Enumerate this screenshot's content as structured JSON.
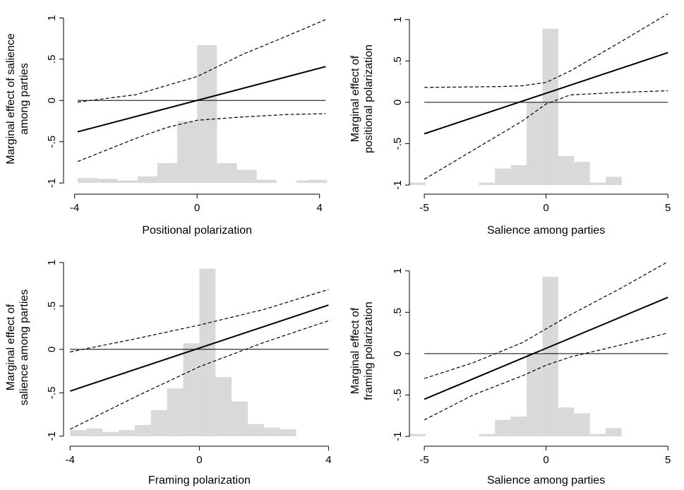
{
  "chart_data": [
    {
      "type": "line",
      "xlabel": "Positional polarization",
      "ylabel_lines": [
        "Marginal effect of salience",
        "among parties"
      ],
      "xlim": [
        -4.2,
        4.4
      ],
      "ylim": [
        -1.05,
        1.08
      ],
      "xticks": [
        -4,
        0,
        4
      ],
      "xtick_labels": [
        "-4",
        "0",
        "4"
      ],
      "yticks": [
        -1,
        -0.5,
        0,
        0.5,
        1
      ],
      "ytick_labels": [
        "-1",
        "-.5",
        "0",
        ".5",
        "1"
      ],
      "zero_line": 0,
      "series": [
        {
          "role": "estimate",
          "style": "solid",
          "x": [
            -3.9,
            4.2
          ],
          "y": [
            -0.38,
            0.41
          ]
        },
        {
          "role": "upper-ci",
          "style": "dashed",
          "x": [
            -3.9,
            -2,
            0,
            1.5,
            3,
            4.2
          ],
          "y": [
            -0.02,
            0.07,
            0.29,
            0.56,
            0.79,
            0.98
          ]
        },
        {
          "role": "lower-ci",
          "style": "dashed",
          "x": [
            -3.9,
            -2,
            -1,
            0,
            1.5,
            3,
            4.2
          ],
          "y": [
            -0.74,
            -0.46,
            -0.33,
            -0.24,
            -0.2,
            -0.17,
            -0.16
          ]
        }
      ],
      "histogram": [
        {
          "x0": -3.9,
          "x1": -3.25,
          "y": -0.94
        },
        {
          "x0": -3.25,
          "x1": -2.6,
          "y": -0.95
        },
        {
          "x0": -2.6,
          "x1": -1.95,
          "y": -0.97
        },
        {
          "x0": -1.95,
          "x1": -1.3,
          "y": -0.92
        },
        {
          "x0": -1.3,
          "x1": -0.65,
          "y": -0.76
        },
        {
          "x0": -0.65,
          "x1": 0.0,
          "y": -0.25
        },
        {
          "x0": 0.0,
          "x1": 0.65,
          "y": 0.67
        },
        {
          "x0": 0.65,
          "x1": 1.3,
          "y": -0.76
        },
        {
          "x0": 1.3,
          "x1": 1.95,
          "y": -0.84
        },
        {
          "x0": 1.95,
          "x1": 2.6,
          "y": -0.96
        },
        {
          "x0": 3.25,
          "x1": 3.6,
          "y": -0.97
        },
        {
          "x0": 3.6,
          "x1": 4.25,
          "y": -0.96
        }
      ]
    },
    {
      "type": "line",
      "xlabel": "Salience among parties",
      "ylabel_lines": [
        "Marginal effect of",
        "positional polarization"
      ],
      "xlim": [
        -5.9,
        5.4
      ],
      "ylim": [
        -1.05,
        1.1
      ],
      "xticks": [
        -5,
        0,
        5
      ],
      "xtick_labels": [
        "-5",
        "0",
        "5"
      ],
      "yticks": [
        -1,
        -0.5,
        0,
        0.5,
        1
      ],
      "ytick_labels": [
        "-1",
        "-.5",
        "0",
        ".5",
        "1"
      ],
      "zero_line": 0,
      "series": [
        {
          "role": "estimate",
          "style": "solid",
          "x": [
            -5,
            5
          ],
          "y": [
            -0.38,
            0.6
          ]
        },
        {
          "role": "upper-ci",
          "style": "dashed",
          "x": [
            -5,
            -2,
            -1,
            0,
            1,
            3,
            5
          ],
          "y": [
            0.18,
            0.19,
            0.2,
            0.24,
            0.38,
            0.72,
            1.07
          ]
        },
        {
          "role": "lower-ci",
          "style": "dashed",
          "x": [
            -5,
            -3,
            -1,
            0,
            1,
            3,
            5
          ],
          "y": [
            -0.93,
            -0.58,
            -0.23,
            -0.02,
            0.09,
            0.12,
            0.14
          ]
        }
      ],
      "histogram": [
        {
          "x0": -5.6,
          "x1": -4.95,
          "y": -0.97
        },
        {
          "x0": -2.75,
          "x1": -2.1,
          "y": -0.97
        },
        {
          "x0": -2.1,
          "x1": -1.45,
          "y": -0.8
        },
        {
          "x0": -1.45,
          "x1": -0.8,
          "y": -0.76
        },
        {
          "x0": -0.8,
          "x1": -0.15,
          "y": 0.0
        },
        {
          "x0": -0.15,
          "x1": 0.5,
          "y": 0.89
        },
        {
          "x0": 0.5,
          "x1": 1.15,
          "y": -0.65
        },
        {
          "x0": 1.15,
          "x1": 1.8,
          "y": -0.72
        },
        {
          "x0": 1.8,
          "x1": 2.45,
          "y": -0.97
        },
        {
          "x0": 2.45,
          "x1": 3.1,
          "y": -0.9
        }
      ]
    },
    {
      "type": "line",
      "xlabel": "Framing polarization",
      "ylabel_lines": [
        "Marginal effect of",
        "salience among parties"
      ],
      "xlim": [
        -4.05,
        4.1
      ],
      "ylim": [
        -1.05,
        1.08
      ],
      "xticks": [
        -4,
        0,
        4
      ],
      "xtick_labels": [
        "-4",
        "0",
        "4"
      ],
      "yticks": [
        -1,
        -0.5,
        0,
        0.5,
        1
      ],
      "ytick_labels": [
        "-1",
        "-.5",
        "0",
        ".5",
        "1"
      ],
      "zero_line": 0,
      "series": [
        {
          "role": "estimate",
          "style": "solid",
          "x": [
            -4,
            4
          ],
          "y": [
            -0.48,
            0.51
          ]
        },
        {
          "role": "upper-ci",
          "style": "dashed",
          "x": [
            -4,
            -2,
            0,
            2,
            4
          ],
          "y": [
            -0.03,
            0.12,
            0.28,
            0.46,
            0.69
          ]
        },
        {
          "role": "lower-ci",
          "style": "dashed",
          "x": [
            -4,
            -2,
            0,
            2,
            4
          ],
          "y": [
            -0.92,
            -0.55,
            -0.2,
            0.08,
            0.33
          ]
        }
      ],
      "histogram": [
        {
          "x0": -4.0,
          "x1": -3.5,
          "y": -0.93
        },
        {
          "x0": -3.5,
          "x1": -3.0,
          "y": -0.91
        },
        {
          "x0": -3.0,
          "x1": -2.5,
          "y": -0.95
        },
        {
          "x0": -2.5,
          "x1": -2.0,
          "y": -0.93
        },
        {
          "x0": -2.0,
          "x1": -1.5,
          "y": -0.87
        },
        {
          "x0": -1.5,
          "x1": -1.0,
          "y": -0.7
        },
        {
          "x0": -1.0,
          "x1": -0.5,
          "y": -0.45
        },
        {
          "x0": -0.5,
          "x1": 0.0,
          "y": 0.07
        },
        {
          "x0": 0.0,
          "x1": 0.5,
          "y": 0.93
        },
        {
          "x0": 0.5,
          "x1": 1.0,
          "y": -0.32
        },
        {
          "x0": 1.0,
          "x1": 1.5,
          "y": -0.6
        },
        {
          "x0": 1.5,
          "x1": 2.0,
          "y": -0.86
        },
        {
          "x0": 2.0,
          "x1": 2.5,
          "y": -0.9
        },
        {
          "x0": 2.5,
          "x1": 3.0,
          "y": -0.92
        }
      ]
    },
    {
      "type": "line",
      "xlabel": "Salience among parties",
      "ylabel_lines": [
        "Marginal effect of",
        "framing polarization"
      ],
      "xlim": [
        -5.9,
        5.4
      ],
      "ylim": [
        -1.05,
        1.1
      ],
      "xticks": [
        -5,
        0,
        5
      ],
      "xtick_labels": [
        "-5",
        "0",
        "5"
      ],
      "yticks": [
        -1,
        -0.5,
        0,
        0.5,
        1
      ],
      "ytick_labels": [
        "-1",
        "-.5",
        "0",
        ".5",
        "1"
      ],
      "zero_line": 0,
      "series": [
        {
          "role": "estimate",
          "style": "solid",
          "x": [
            -5,
            5
          ],
          "y": [
            -0.55,
            0.68
          ]
        },
        {
          "role": "upper-ci",
          "style": "dashed",
          "x": [
            -5,
            -3,
            -1,
            0,
            1,
            3,
            5
          ],
          "y": [
            -0.3,
            -0.11,
            0.13,
            0.3,
            0.47,
            0.78,
            1.11
          ]
        },
        {
          "role": "lower-ci",
          "style": "dashed",
          "x": [
            -5,
            -3,
            -1,
            0,
            1,
            3,
            5
          ],
          "y": [
            -0.8,
            -0.5,
            -0.27,
            -0.14,
            -0.04,
            0.1,
            0.25
          ]
        }
      ],
      "histogram": [
        {
          "x0": -5.6,
          "x1": -4.95,
          "y": -0.97
        },
        {
          "x0": -2.75,
          "x1": -2.1,
          "y": -0.97
        },
        {
          "x0": -2.1,
          "x1": -1.45,
          "y": -0.8
        },
        {
          "x0": -1.45,
          "x1": -0.8,
          "y": -0.76
        },
        {
          "x0": -0.8,
          "x1": -0.15,
          "y": 0.0
        },
        {
          "x0": -0.15,
          "x1": 0.5,
          "y": 0.93
        },
        {
          "x0": 0.5,
          "x1": 1.15,
          "y": -0.65
        },
        {
          "x0": 1.15,
          "x1": 1.8,
          "y": -0.72
        },
        {
          "x0": 1.8,
          "x1": 2.45,
          "y": -0.97
        },
        {
          "x0": 2.45,
          "x1": 3.1,
          "y": -0.9
        }
      ]
    }
  ],
  "colors": {
    "histogram": "#d9d9d9",
    "line": "#000000",
    "axis": "#000000"
  }
}
